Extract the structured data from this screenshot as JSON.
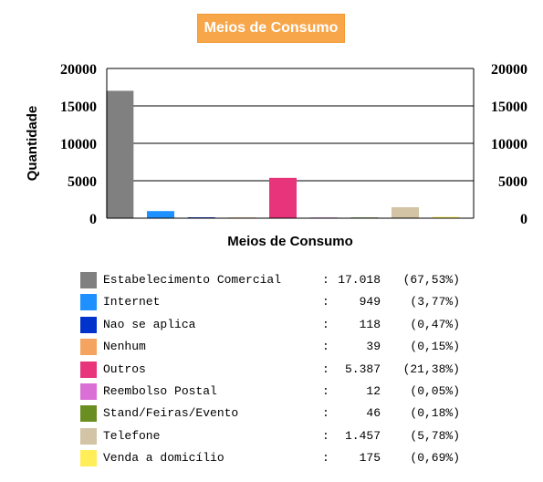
{
  "chart_data": {
    "type": "bar",
    "title": "Meios de Consumo",
    "xlabel": "Meios de Consumo",
    "ylabel": "Quantidade",
    "ylim": [
      0,
      20000
    ],
    "yticks": [
      "0",
      "5000",
      "10000",
      "15000",
      "20000"
    ],
    "grid": true,
    "categories": [
      "Estabelecimento Comercial",
      "Internet",
      "Nao se aplica",
      "Nenhum",
      "Outros",
      "Reembolso Postal",
      "Stand/Feiras/Evento",
      "Telefone",
      "Venda a domicílio"
    ],
    "values": [
      17018,
      949,
      118,
      39,
      5387,
      12,
      46,
      1457,
      175
    ],
    "colors": [
      "#808080",
      "#1e90ff",
      "#0033cc",
      "#f4a460",
      "#e8347a",
      "#da70d6",
      "#6b8e23",
      "#d2c4a4",
      "#ffee58"
    ]
  },
  "legend": [
    {
      "label": "Estabelecimento Comercial",
      "colon": ":",
      "count": "17.018",
      "pct": "(67,53%)"
    },
    {
      "label": "Internet",
      "colon": ":",
      "count": "949",
      "pct": "(3,77%)"
    },
    {
      "label": "Nao se aplica",
      "colon": ":",
      "count": "118",
      "pct": "(0,47%)"
    },
    {
      "label": "Nenhum",
      "colon": ":",
      "count": "39",
      "pct": "(0,15%)"
    },
    {
      "label": "Outros",
      "colon": ":",
      "count": "5.387",
      "pct": "(21,38%)"
    },
    {
      "label": "Reembolso Postal",
      "colon": ":",
      "count": "12",
      "pct": "(0,05%)"
    },
    {
      "label": "Stand/Feiras/Evento",
      "colon": ":",
      "count": "46",
      "pct": "(0,18%)"
    },
    {
      "label": "Telefone",
      "colon": ":",
      "count": "1.457",
      "pct": "(5,78%)"
    },
    {
      "label": "Venda a domicílio",
      "colon": ":",
      "count": "175",
      "pct": "(0,69%)"
    }
  ]
}
